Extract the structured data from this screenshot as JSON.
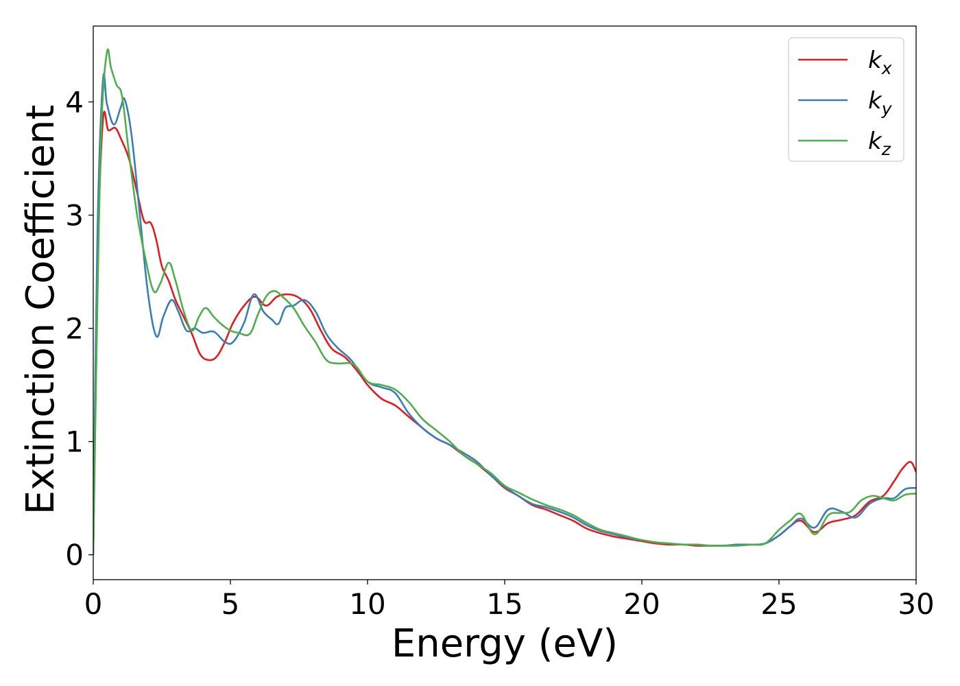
{
  "chart_data": {
    "type": "line",
    "xlabel": "Energy (eV)",
    "ylabel": "Extinction Coefficient",
    "xlim": [
      0,
      30
    ],
    "ylim": [
      -0.22,
      4.67
    ],
    "xticks": [
      0,
      5,
      10,
      15,
      20,
      25,
      30
    ],
    "yticks": [
      0,
      1,
      2,
      3,
      4
    ],
    "grid": false,
    "legend_position": "top-right",
    "series": [
      {
        "name": "k_x",
        "label_base": "k",
        "label_sub": "x",
        "color": "#e41a1c",
        "x": [
          0,
          0.15,
          0.35,
          0.55,
          0.8,
          1.0,
          1.3,
          1.6,
          1.85,
          2.1,
          2.3,
          2.5,
          2.75,
          3.0,
          3.3,
          3.6,
          3.9,
          4.2,
          4.5,
          4.8,
          5.1,
          5.5,
          5.9,
          6.3,
          6.7,
          7.1,
          7.5,
          7.9,
          8.3,
          8.7,
          9.2,
          9.7,
          10.0,
          10.5,
          11.0,
          11.5,
          12.0,
          12.5,
          13.0,
          13.5,
          14.0,
          14.5,
          15.0,
          15.5,
          16.0,
          16.5,
          17.0,
          17.5,
          18.0,
          18.5,
          19.0,
          19.5,
          20.0,
          20.5,
          21.0,
          21.5,
          22.0,
          22.5,
          23.0,
          23.5,
          24.0,
          24.5,
          25.0,
          25.4,
          25.8,
          26.3,
          26.8,
          27.3,
          27.8,
          28.3,
          28.8,
          29.2,
          29.5,
          29.8,
          30.0
        ],
        "values": [
          0.0,
          2.5,
          3.83,
          3.75,
          3.77,
          3.68,
          3.5,
          3.2,
          2.95,
          2.93,
          2.78,
          2.55,
          2.42,
          2.25,
          2.1,
          1.95,
          1.77,
          1.72,
          1.75,
          1.88,
          2.05,
          2.2,
          2.28,
          2.2,
          2.28,
          2.3,
          2.27,
          2.17,
          1.98,
          1.82,
          1.74,
          1.6,
          1.5,
          1.38,
          1.32,
          1.22,
          1.12,
          1.03,
          0.97,
          0.88,
          0.8,
          0.7,
          0.59,
          0.52,
          0.44,
          0.4,
          0.35,
          0.3,
          0.23,
          0.19,
          0.16,
          0.14,
          0.12,
          0.1,
          0.09,
          0.09,
          0.08,
          0.08,
          0.08,
          0.09,
          0.09,
          0.1,
          0.17,
          0.25,
          0.3,
          0.2,
          0.28,
          0.31,
          0.35,
          0.47,
          0.52,
          0.65,
          0.76,
          0.82,
          0.73
        ]
      },
      {
        "name": "k_y",
        "label_base": "k",
        "label_sub": "y",
        "color": "#377eb8",
        "x": [
          0,
          0.15,
          0.35,
          0.5,
          0.75,
          1.0,
          1.15,
          1.4,
          1.7,
          2.0,
          2.3,
          2.55,
          2.85,
          3.1,
          3.4,
          3.7,
          4.0,
          4.4,
          4.8,
          5.1,
          5.5,
          5.85,
          6.2,
          6.5,
          6.75,
          7.0,
          7.3,
          7.7,
          8.1,
          8.5,
          8.9,
          9.4,
          10.0,
          10.5,
          11.0,
          11.5,
          12.0,
          12.5,
          13.0,
          13.5,
          14.0,
          14.5,
          15.0,
          15.5,
          16.0,
          16.5,
          17.0,
          17.5,
          18.0,
          18.5,
          19.0,
          19.5,
          20.0,
          20.5,
          21.0,
          21.5,
          22.0,
          22.5,
          23.0,
          23.5,
          24.0,
          24.5,
          25.0,
          25.4,
          25.8,
          26.3,
          26.8,
          27.3,
          27.8,
          28.3,
          28.8,
          29.2,
          29.6,
          30.0
        ],
        "values": [
          0.0,
          2.8,
          4.18,
          3.98,
          3.8,
          3.95,
          4.02,
          3.7,
          3.0,
          2.3,
          1.93,
          2.1,
          2.25,
          2.15,
          1.98,
          2.0,
          1.96,
          1.97,
          1.88,
          1.88,
          2.05,
          2.3,
          2.15,
          2.08,
          2.04,
          2.18,
          2.2,
          2.25,
          2.15,
          1.95,
          1.83,
          1.72,
          1.53,
          1.48,
          1.43,
          1.25,
          1.12,
          1.03,
          0.97,
          0.9,
          0.82,
          0.7,
          0.6,
          0.52,
          0.45,
          0.42,
          0.38,
          0.33,
          0.26,
          0.21,
          0.18,
          0.15,
          0.13,
          0.11,
          0.1,
          0.09,
          0.09,
          0.08,
          0.08,
          0.09,
          0.09,
          0.1,
          0.17,
          0.25,
          0.32,
          0.24,
          0.4,
          0.38,
          0.33,
          0.45,
          0.5,
          0.5,
          0.58,
          0.59
        ]
      },
      {
        "name": "k_z",
        "label_base": "k",
        "label_sub": "z",
        "color": "#4daf4a",
        "x": [
          0,
          0.15,
          0.3,
          0.5,
          0.65,
          0.85,
          1.05,
          1.3,
          1.6,
          1.9,
          2.2,
          2.45,
          2.75,
          3.0,
          3.3,
          3.6,
          3.85,
          4.1,
          4.4,
          4.7,
          5.0,
          5.3,
          5.7,
          6.0,
          6.3,
          6.6,
          6.9,
          7.3,
          7.7,
          8.1,
          8.5,
          8.9,
          9.5,
          10.0,
          10.5,
          11.0,
          11.5,
          12.0,
          12.5,
          13.0,
          13.5,
          14.0,
          14.5,
          15.0,
          15.5,
          16.0,
          16.5,
          17.0,
          17.5,
          18.0,
          18.5,
          19.0,
          19.5,
          20.0,
          20.5,
          21.0,
          21.5,
          22.0,
          22.5,
          23.0,
          23.5,
          24.0,
          24.5,
          25.0,
          25.4,
          25.8,
          26.3,
          26.8,
          27.2,
          27.6,
          28.0,
          28.4,
          28.8,
          29.2,
          29.6,
          30.0
        ],
        "values": [
          0.0,
          2.2,
          3.8,
          4.44,
          4.3,
          4.15,
          4.05,
          3.55,
          3.0,
          2.62,
          2.33,
          2.4,
          2.58,
          2.42,
          2.15,
          1.98,
          2.1,
          2.18,
          2.1,
          2.03,
          1.98,
          1.96,
          1.95,
          2.12,
          2.28,
          2.33,
          2.28,
          2.18,
          2.02,
          1.88,
          1.72,
          1.69,
          1.68,
          1.53,
          1.5,
          1.46,
          1.35,
          1.2,
          1.1,
          1.0,
          0.88,
          0.8,
          0.72,
          0.61,
          0.55,
          0.49,
          0.44,
          0.4,
          0.35,
          0.28,
          0.22,
          0.19,
          0.16,
          0.13,
          0.11,
          0.1,
          0.09,
          0.09,
          0.08,
          0.08,
          0.08,
          0.09,
          0.1,
          0.22,
          0.3,
          0.36,
          0.18,
          0.35,
          0.37,
          0.38,
          0.48,
          0.52,
          0.5,
          0.48,
          0.53,
          0.54
        ]
      }
    ]
  }
}
